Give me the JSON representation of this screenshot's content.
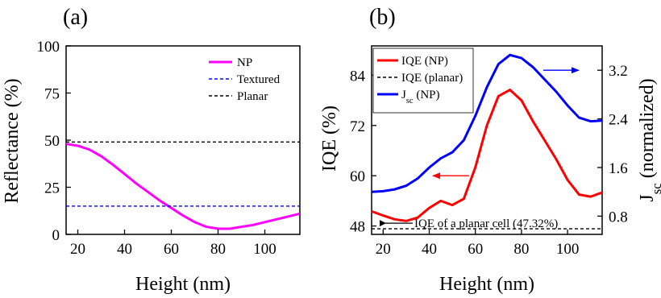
{
  "chart_data": [
    {
      "panel": "(a)",
      "type": "line",
      "xlabel": "Height  (nm)",
      "ylabel": "Reflectance  (%)",
      "xlim": [
        15,
        115
      ],
      "ylim": [
        0,
        100
      ],
      "xticks": [
        20,
        40,
        60,
        80,
        100
      ],
      "yticks": [
        0,
        25,
        50,
        75,
        100
      ],
      "legend_position": "top-right",
      "series": [
        {
          "name": "NP",
          "color": "#ff00ff",
          "style": "solid",
          "x": [
            15,
            20,
            25,
            30,
            35,
            40,
            45,
            50,
            55,
            60,
            65,
            70,
            75,
            80,
            85,
            90,
            95,
            100,
            105,
            110,
            115
          ],
          "y": [
            48,
            47,
            45,
            41.5,
            37,
            32,
            27,
            22.5,
            18,
            14,
            10,
            6.5,
            4,
            3,
            3,
            4,
            5,
            6.5,
            8,
            9.5,
            11
          ]
        },
        {
          "name": "Textured",
          "color": "#0000ff",
          "style": "dashed",
          "x": [
            15,
            115
          ],
          "y": [
            15,
            15
          ]
        },
        {
          "name": "Planar",
          "color": "#000000",
          "style": "dashed",
          "x": [
            15,
            115
          ],
          "y": [
            49,
            49
          ]
        }
      ]
    },
    {
      "panel": "(b)",
      "type": "line",
      "xlabel": "Height  (nm)",
      "ylabel": "IQE  (%)",
      "y2label": "J_sc (normalized)",
      "xlim": [
        15,
        115
      ],
      "ylim": [
        46,
        91
      ],
      "y2lim": [
        0.5,
        3.6
      ],
      "xticks": [
        20,
        40,
        60,
        80,
        100
      ],
      "yticks": [
        48,
        60,
        72,
        84
      ],
      "y2ticks": [
        0.8,
        1.6,
        2.4,
        3.2
      ],
      "y2ticklabels": [
        "0.8",
        "1.6",
        "2.4",
        "3.2"
      ],
      "legend_position": "top-left",
      "series": [
        {
          "name": "IQE (NP)",
          "color": "#ff0000",
          "style": "solid",
          "axis": "left",
          "x": [
            15,
            20,
            25,
            30,
            35,
            40,
            45,
            50,
            55,
            60,
            65,
            70,
            75,
            80,
            85,
            90,
            95,
            100,
            105,
            110,
            115
          ],
          "y": [
            51.5,
            50.5,
            49.6,
            49.2,
            50,
            52.3,
            54,
            53,
            54.5,
            62,
            72,
            79,
            80.5,
            78,
            73,
            68.5,
            64,
            59,
            55.5,
            55,
            56
          ]
        },
        {
          "name": "IQE (planar)",
          "color": "#000000",
          "style": "dashed",
          "axis": "left",
          "x": [
            15,
            115
          ],
          "y": [
            47.32,
            47.32
          ]
        },
        {
          "name": "J_sc (NP)",
          "color": "#0000ff",
          "style": "solid",
          "axis": "right",
          "x": [
            15,
            20,
            25,
            30,
            35,
            40,
            45,
            50,
            55,
            60,
            65,
            70,
            75,
            80,
            85,
            90,
            95,
            100,
            105,
            110,
            115
          ],
          "y": [
            1.2,
            1.21,
            1.24,
            1.3,
            1.42,
            1.6,
            1.75,
            1.85,
            2.05,
            2.45,
            2.92,
            3.3,
            3.45,
            3.4,
            3.25,
            3.05,
            2.85,
            2.62,
            2.42,
            2.36,
            2.37
          ]
        }
      ],
      "annotations": [
        {
          "text": "IQE of a planar cell (47.32%)",
          "arrow": "left"
        }
      ],
      "indicator_arrows": [
        {
          "color": "#ff0000",
          "points_to": "left axis"
        },
        {
          "color": "#0000ff",
          "points_to": "right axis"
        }
      ]
    }
  ]
}
